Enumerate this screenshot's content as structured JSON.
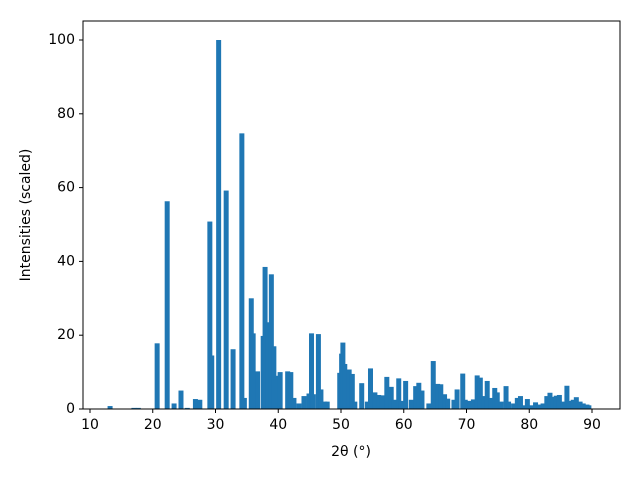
{
  "chart_data": {
    "type": "bar",
    "xlabel": "2θ (°)",
    "ylabel": "Intensities (scaled)",
    "color": "#1f77b4",
    "xlim": [
      8.885,
      94.46
    ],
    "ylim": [
      0,
      105.15
    ],
    "xticks": [
      10,
      20,
      30,
      40,
      50,
      60,
      70,
      80,
      90
    ],
    "yticks": [
      0,
      20,
      40,
      60,
      80,
      100
    ],
    "x": [
      13.2,
      17.0,
      17.7,
      20.7,
      22.3,
      23.4,
      24.5,
      25.5,
      26.8,
      27.5,
      29.1,
      29.4,
      30.5,
      31.7,
      32.8,
      34.2,
      34.6,
      35.7,
      36.0,
      36.7,
      37.6,
      37.9,
      38.4,
      38.9,
      39.3,
      39.7,
      40.3,
      41.5,
      42.0,
      42.5,
      43.3,
      44.1,
      44.9,
      45.3,
      45.6,
      46.4,
      46.8,
      47.4,
      47.8,
      49.8,
      50.1,
      50.3,
      50.6,
      51.3,
      51.8,
      52.2,
      53.3,
      54.2,
      54.7,
      55.4,
      56.0,
      56.6,
      57.3,
      58.0,
      58.5,
      59.2,
      59.6,
      60.3,
      61.2,
      61.9,
      62.4,
      62.9,
      64.0,
      64.7,
      65.4,
      65.9,
      66.5,
      67.0,
      68.0,
      68.5,
      69.4,
      69.8,
      70.5,
      71.1,
      71.7,
      72.2,
      72.8,
      73.3,
      73.9,
      74.5,
      74.9,
      75.5,
      76.3,
      76.7,
      77.5,
      78.1,
      78.6,
      79.3,
      79.7,
      80.3,
      81.0,
      81.6,
      82.2,
      82.8,
      83.3,
      83.8,
      84.3,
      84.8,
      85.4,
      86.0,
      86.4,
      87.0,
      87.5,
      88.1,
      88.6,
      89.2,
      89.5
    ],
    "values": [
      0.8,
      0.3,
      0.3,
      17.8,
      56.3,
      1.5,
      5,
      0.3,
      2.7,
      2.5,
      50.8,
      14.5,
      100,
      59.2,
      16.2,
      74.7,
      3,
      30,
      20.5,
      10.2,
      19.8,
      38.5,
      23.5,
      36.5,
      17,
      9,
      10,
      10.2,
      10,
      3,
      1.5,
      3.5,
      4.2,
      20.5,
      4,
      20.3,
      5.3,
      2,
      2,
      9.8,
      15,
      18,
      12.2,
      10.7,
      9.5,
      2,
      7,
      2,
      11,
      4.5,
      3.8,
      3.7,
      8.7,
      6,
      2.5,
      8.3,
      2.2,
      7.6,
      2.5,
      6.2,
      7.1,
      5,
      1.5,
      13,
      6.8,
      6.7,
      4,
      2.8,
      2.5,
      5.3,
      9.6,
      2.5,
      2.2,
      2.6,
      9.1,
      8.5,
      3.5,
      7.6,
      3,
      5.7,
      4.5,
      2,
      6.2,
      2,
      1.5,
      3,
      3.5,
      1,
      2.7,
      1,
      1.8,
      1.2,
      1.5,
      3.5,
      4.4,
      3.3,
      3.6,
      3.8,
      2,
      6.3,
      2.2,
      2.5,
      3.2,
      2,
      1.5,
      1.2,
      1.0
    ]
  }
}
